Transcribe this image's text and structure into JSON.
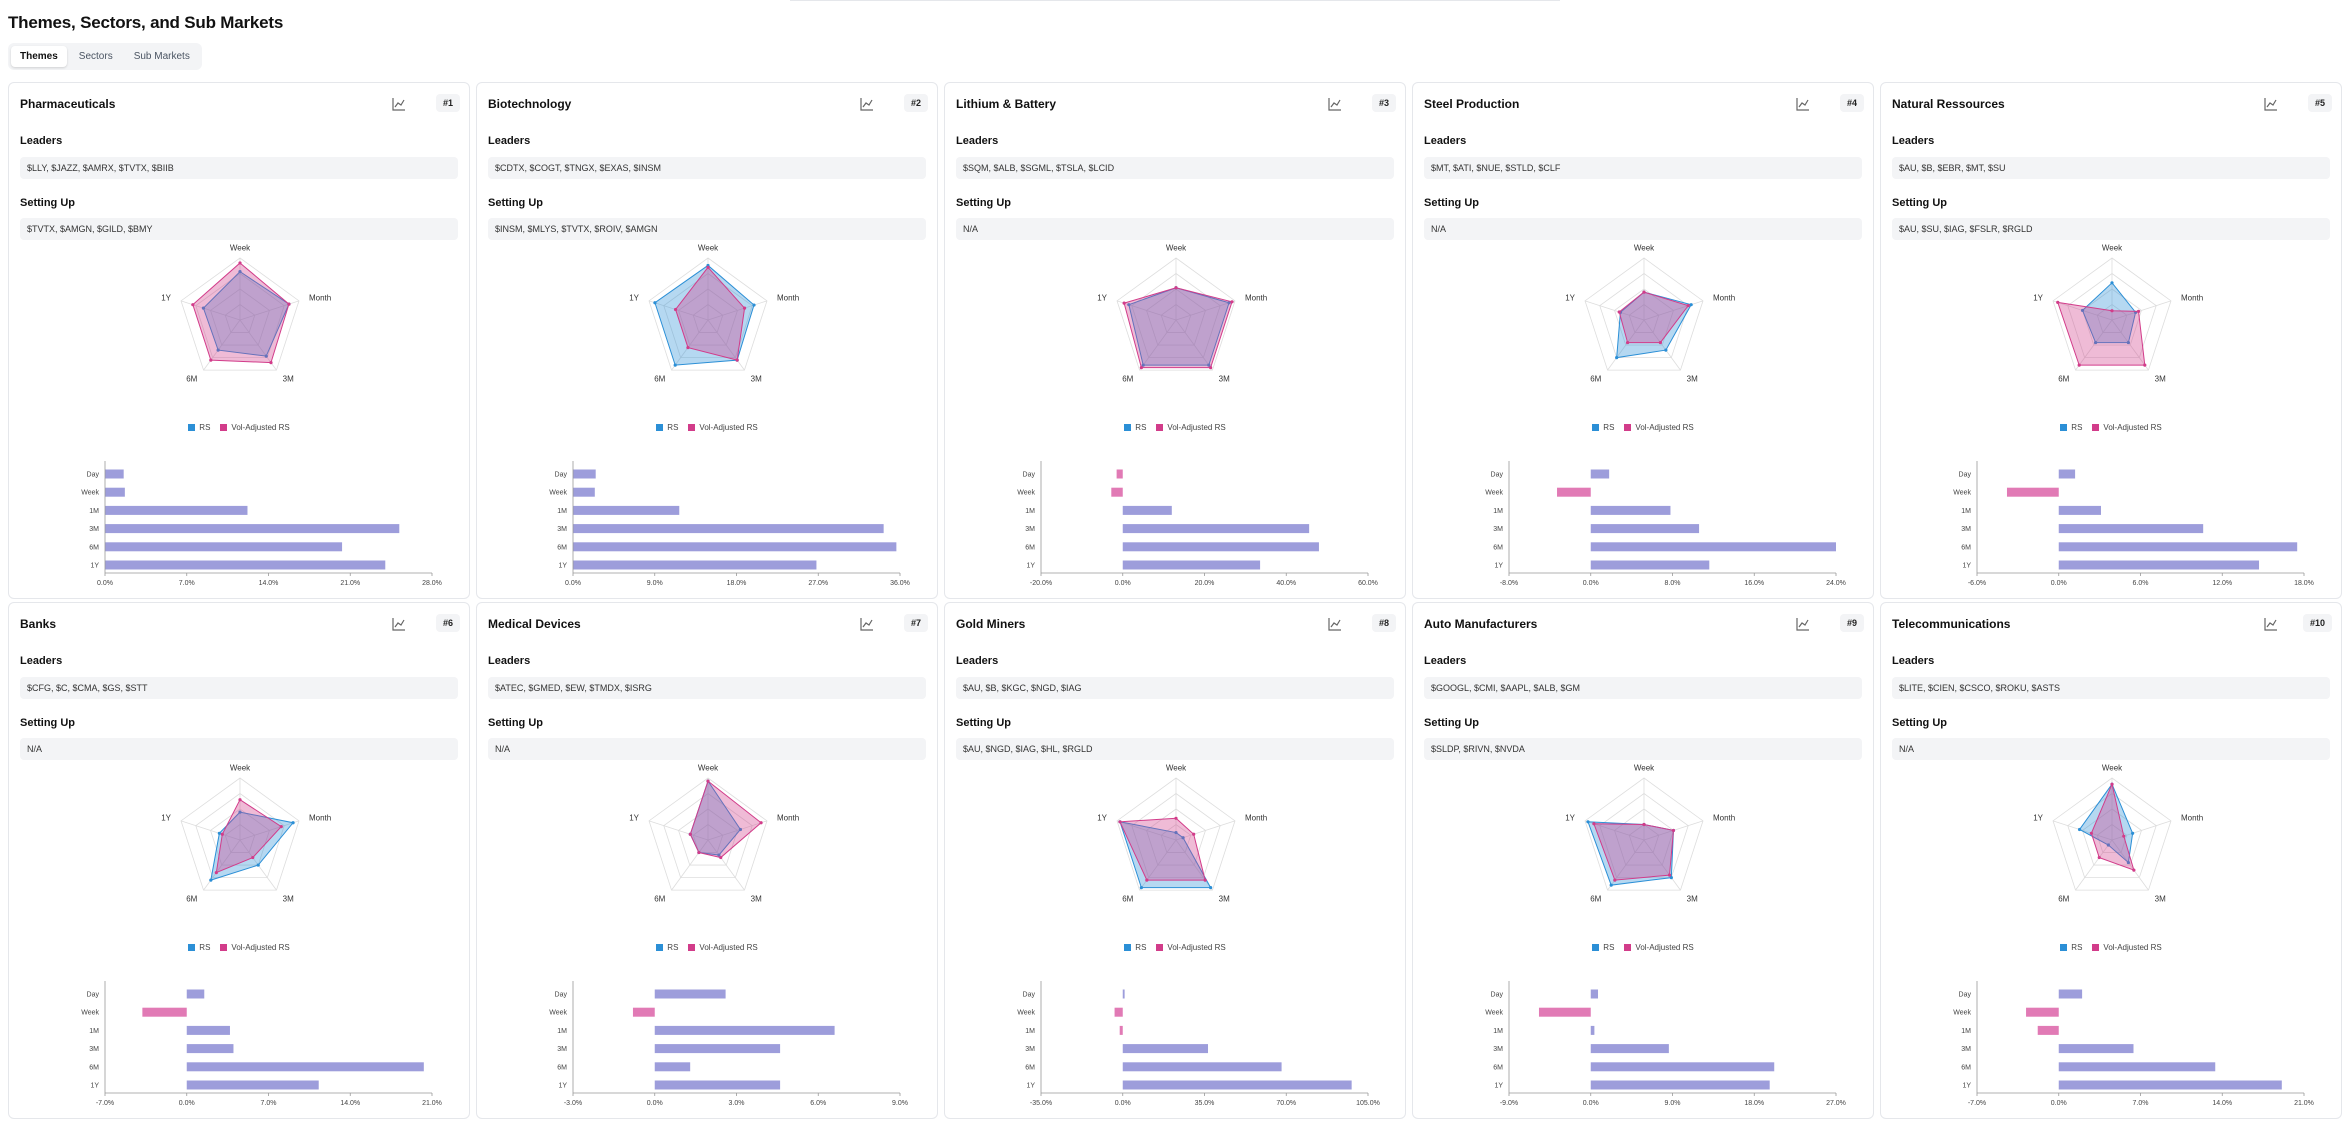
{
  "page": {
    "title": "Themes, Sectors, and Sub Markets"
  },
  "tabs": [
    {
      "label": "Themes",
      "active": true
    },
    {
      "label": "Sectors",
      "active": false
    },
    {
      "label": "Sub Markets",
      "active": false
    }
  ],
  "labels": {
    "leaders": "Leaders",
    "setting_up": "Setting Up",
    "legend_rs": "RS",
    "legend_vol": "Vol-Adjusted RS"
  },
  "colors": {
    "rs": "#2b8fd6",
    "vol": "#d23c8a",
    "bar_pos": "#9d9ddb",
    "bar_neg": "#e17ab5"
  },
  "radar_axes": [
    "Week",
    "Month",
    "3M",
    "6M",
    "1Y"
  ],
  "bar_rows": [
    "Day",
    "Week",
    "1M",
    "3M",
    "6M",
    "1Y"
  ],
  "cards": [
    {
      "title": "Pharmaceuticals",
      "rank": "#1",
      "leaders": "$LLY, $JAZZ, $AMRX, $TVTX, $BIIB",
      "setting_up": "$TVTX, $AMGN, $GILD, $BMY",
      "chart_data": {
        "type": "bar",
        "categories": [
          "Day",
          "Week",
          "1M",
          "3M",
          "6M",
          "1Y"
        ],
        "values": [
          1.6,
          1.7,
          12.2,
          25.2,
          20.3,
          24.0
        ],
        "xlim": [
          0,
          28
        ],
        "ticks": [
          0,
          7,
          14,
          21,
          28
        ],
        "radar": {
          "axes": [
            "Week",
            "Month",
            "3M",
            "6M",
            "1Y"
          ],
          "rs": [
            0.78,
            0.83,
            0.72,
            0.6,
            0.62
          ],
          "vol": [
            0.92,
            0.83,
            0.85,
            0.8,
            0.8
          ]
        }
      }
    },
    {
      "title": "Biotechnology",
      "rank": "#2",
      "leaders": "$CDTX, $COGT, $TNGX, $EXAS, $INSM",
      "setting_up": "$INSM, $MLYS, $TVTX, $ROIV, $AMGN",
      "chart_data": {
        "type": "bar",
        "categories": [
          "Day",
          "Week",
          "1M",
          "3M",
          "6M",
          "1Y"
        ],
        "values": [
          2.5,
          2.4,
          11.7,
          34.2,
          35.6,
          26.8
        ],
        "xlim": [
          0,
          36
        ],
        "ticks": [
          0,
          9,
          18,
          27,
          36
        ],
        "radar": {
          "axes": [
            "Week",
            "Month",
            "3M",
            "6M",
            "1Y"
          ],
          "rs": [
            0.88,
            0.78,
            0.8,
            0.9,
            0.9
          ],
          "vol": [
            0.85,
            0.62,
            0.8,
            0.55,
            0.55
          ]
        }
      }
    },
    {
      "title": "Lithium & Battery",
      "rank": "#3",
      "leaders": "$SQM, $ALB, $SGML, $TSLA, $LCID",
      "setting_up": "N/A",
      "chart_data": {
        "type": "bar",
        "categories": [
          "Day",
          "Week",
          "1M",
          "3M",
          "6M",
          "1Y"
        ],
        "values": [
          -1.5,
          -2.8,
          12.0,
          45.6,
          48.0,
          33.6
        ],
        "xlim": [
          -20,
          60
        ],
        "ticks": [
          -20,
          0,
          20,
          40,
          60
        ],
        "radar": {
          "axes": [
            "Week",
            "Month",
            "3M",
            "6M",
            "1Y"
          ],
          "rs": [
            0.52,
            0.9,
            0.9,
            0.9,
            0.8
          ],
          "vol": [
            0.52,
            0.95,
            0.95,
            0.95,
            0.88
          ]
        }
      }
    },
    {
      "title": "Steel Production",
      "rank": "#4",
      "leaders": "$MT, $ATI, $NUE, $STLD, $CLF",
      "setting_up": "N/A",
      "chart_data": {
        "type": "bar",
        "categories": [
          "Day",
          "Week",
          "1M",
          "3M",
          "6M",
          "1Y"
        ],
        "values": [
          1.8,
          -3.3,
          7.8,
          10.6,
          24.0,
          11.6
        ],
        "xlim": [
          -8,
          24
        ],
        "ticks": [
          -8,
          0,
          8,
          16,
          24
        ],
        "radar": {
          "axes": [
            "Week",
            "Month",
            "3M",
            "6M",
            "1Y"
          ],
          "rs": [
            0.45,
            0.8,
            0.6,
            0.75,
            0.4
          ],
          "vol": [
            0.45,
            0.75,
            0.45,
            0.45,
            0.42
          ]
        }
      }
    },
    {
      "title": "Natural Ressources",
      "rank": "#5",
      "leaders": "$AU, $B, $EBR, $MT, $SU",
      "setting_up": "$AU, $SU, $IAG, $FSLR, $RGLD",
      "chart_data": {
        "type": "bar",
        "categories": [
          "Day",
          "Week",
          "1M",
          "3M",
          "6M",
          "1Y"
        ],
        "values": [
          1.2,
          -3.8,
          3.1,
          10.6,
          17.5,
          14.7
        ],
        "xlim": [
          -6,
          18
        ],
        "ticks": [
          -6,
          0,
          6,
          12,
          18
        ],
        "radar": {
          "axes": [
            "Week",
            "Month",
            "3M",
            "6M",
            "1Y"
          ],
          "rs": [
            0.6,
            0.4,
            0.45,
            0.45,
            0.5
          ],
          "vol": [
            0.15,
            0.45,
            0.9,
            0.9,
            0.92
          ]
        }
      }
    },
    {
      "title": "Banks",
      "rank": "#6",
      "leaders": "$CFG, $C, $CMA, $GS, $STT",
      "setting_up": "N/A",
      "chart_data": {
        "type": "bar",
        "categories": [
          "Day",
          "Week",
          "1M",
          "3M",
          "6M",
          "1Y"
        ],
        "values": [
          1.5,
          -3.8,
          3.7,
          4.0,
          20.3,
          11.3
        ],
        "xlim": [
          -7,
          21
        ],
        "ticks": [
          -7,
          0,
          7,
          14,
          21
        ],
        "radar": {
          "axes": [
            "Week",
            "Month",
            "3M",
            "6M",
            "1Y"
          ],
          "rs": [
            0.45,
            0.9,
            0.5,
            0.8,
            0.35
          ],
          "vol": [
            0.65,
            0.7,
            0.35,
            0.65,
            0.3
          ]
        }
      }
    },
    {
      "title": "Medical Devices",
      "rank": "#7",
      "leaders": "$ATEC, $GMED, $EW, $TMDX, $ISRG",
      "setting_up": "N/A",
      "chart_data": {
        "type": "bar",
        "categories": [
          "Day",
          "Week",
          "1M",
          "3M",
          "6M",
          "1Y"
        ],
        "values": [
          2.6,
          -0.8,
          6.6,
          4.6,
          1.3,
          4.6
        ],
        "xlim": [
          -3,
          9
        ],
        "ticks": [
          -3,
          0,
          3,
          6,
          9
        ],
        "radar": {
          "axes": [
            "Week",
            "Month",
            "3M",
            "6M",
            "1Y"
          ],
          "rs": [
            0.95,
            0.55,
            0.3,
            0.25,
            0.3
          ],
          "vol": [
            0.95,
            0.9,
            0.35,
            0.25,
            0.3
          ]
        }
      }
    },
    {
      "title": "Gold Miners",
      "rank": "#8",
      "leaders": "$AU, $B, $KGC, $NGD, $IAG",
      "setting_up": "$AU, $NGD, $IAG, $HL, $RGLD",
      "chart_data": {
        "type": "bar",
        "categories": [
          "Day",
          "Week",
          "1M",
          "3M",
          "6M",
          "1Y"
        ],
        "values": [
          0.8,
          -3.5,
          -1.3,
          36.5,
          68.0,
          98.0
        ],
        "xlim": [
          -35,
          105
        ],
        "ticks": [
          -35,
          0,
          35,
          70,
          105
        ],
        "radar": {
          "axes": [
            "Week",
            "Month",
            "3M",
            "6M",
            "1Y"
          ],
          "rs": [
            0.12,
            0.12,
            0.95,
            0.95,
            0.95
          ],
          "vol": [
            0.35,
            0.3,
            0.8,
            0.8,
            0.95
          ]
        }
      }
    },
    {
      "title": "Auto Manufacturers",
      "rank": "#9",
      "leaders": "$GOOGL, $CMI, $AAPL, $ALB, $GM",
      "setting_up": "$SLDP, $RIVN, $NVDA",
      "chart_data": {
        "type": "bar",
        "categories": [
          "Day",
          "Week",
          "1M",
          "3M",
          "6M",
          "1Y"
        ],
        "values": [
          0.8,
          -5.7,
          0.4,
          8.6,
          20.2,
          19.7
        ],
        "xlim": [
          -9,
          27
        ],
        "ticks": [
          -9,
          0,
          9,
          18,
          27
        ],
        "radar": {
          "axes": [
            "Week",
            "Month",
            "3M",
            "6M",
            "1Y"
          ],
          "rs": [
            0.25,
            0.5,
            0.75,
            0.9,
            0.95
          ],
          "vol": [
            0.25,
            0.5,
            0.7,
            0.8,
            0.85
          ]
        }
      }
    },
    {
      "title": "Telecommunications",
      "rank": "#10",
      "leaders": "$LITE, $CIEN, $CSCO, $ROKU, $ASTS",
      "setting_up": "N/A",
      "chart_data": {
        "type": "bar",
        "categories": [
          "Day",
          "Week",
          "1M",
          "3M",
          "6M",
          "1Y"
        ],
        "values": [
          2.0,
          -2.8,
          -1.8,
          6.4,
          13.4,
          19.1
        ],
        "xlim": [
          -7,
          21
        ],
        "ticks": [
          -7,
          0,
          7,
          14,
          21
        ],
        "radar": {
          "axes": [
            "Week",
            "Month",
            "3M",
            "6M",
            "1Y"
          ],
          "rs": [
            0.9,
            0.35,
            0.45,
            0.1,
            0.55
          ],
          "vol": [
            0.9,
            0.2,
            0.6,
            0.35,
            0.35
          ]
        }
      }
    }
  ]
}
